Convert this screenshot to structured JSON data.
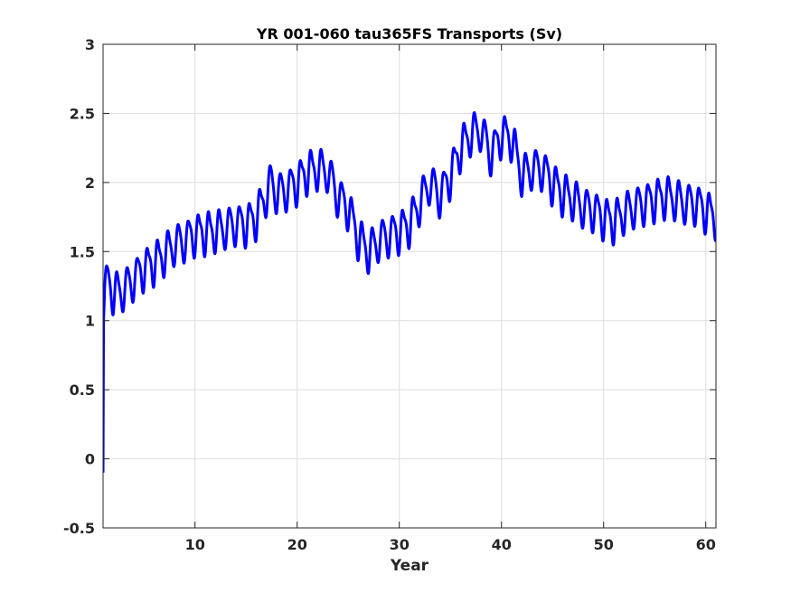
{
  "chart_data": {
    "type": "line",
    "title": "YR 001-060 tau365FS Transports (Sv)",
    "xlabel": "Year",
    "ylabel": "",
    "xlim": [
      1,
      61
    ],
    "ylim": [
      -0.5,
      3
    ],
    "xticks": [
      10,
      20,
      30,
      40,
      50,
      60
    ],
    "yticks": [
      -0.5,
      0,
      0.5,
      1,
      1.5,
      2,
      2.5,
      3
    ],
    "grid": true,
    "line_color": "#0000ff",
    "seasonal_cycle": {
      "amplitude_sv": 0.14,
      "period_years": 1
    },
    "series": [
      {
        "x": [
          1.0,
          1.05,
          1.15,
          1.5,
          2,
          3,
          4,
          5,
          6,
          7,
          8,
          9,
          10,
          11,
          12,
          13,
          14,
          15,
          16,
          17,
          17.5,
          18,
          19,
          20,
          21,
          22,
          23,
          24,
          25,
          26,
          27,
          28,
          29,
          30,
          31,
          32,
          33,
          34,
          35,
          36,
          37,
          38,
          39,
          40,
          41,
          42,
          43,
          44,
          45,
          46,
          47,
          48,
          49,
          50,
          51,
          52,
          53,
          54,
          55,
          56,
          57,
          58,
          59,
          60,
          61
        ],
        "y": [
          -0.1,
          1.0,
          1.2,
          1.3,
          1.2,
          1.22,
          1.3,
          1.38,
          1.42,
          1.48,
          1.55,
          1.58,
          1.63,
          1.64,
          1.65,
          1.67,
          1.7,
          1.7,
          1.75,
          1.92,
          2.0,
          1.92,
          1.95,
          2.0,
          2.08,
          2.1,
          2.08,
          1.9,
          1.82,
          1.6,
          1.5,
          1.58,
          1.62,
          1.65,
          1.7,
          1.85,
          2.0,
          1.9,
          2.05,
          2.25,
          2.35,
          2.38,
          2.2,
          2.35,
          2.32,
          2.05,
          2.1,
          2.1,
          2.0,
          1.92,
          1.88,
          1.82,
          1.8,
          1.75,
          1.72,
          1.78,
          1.82,
          1.85,
          1.88,
          1.9,
          1.88,
          1.85,
          1.85,
          1.8,
          1.75
        ]
      }
    ]
  }
}
